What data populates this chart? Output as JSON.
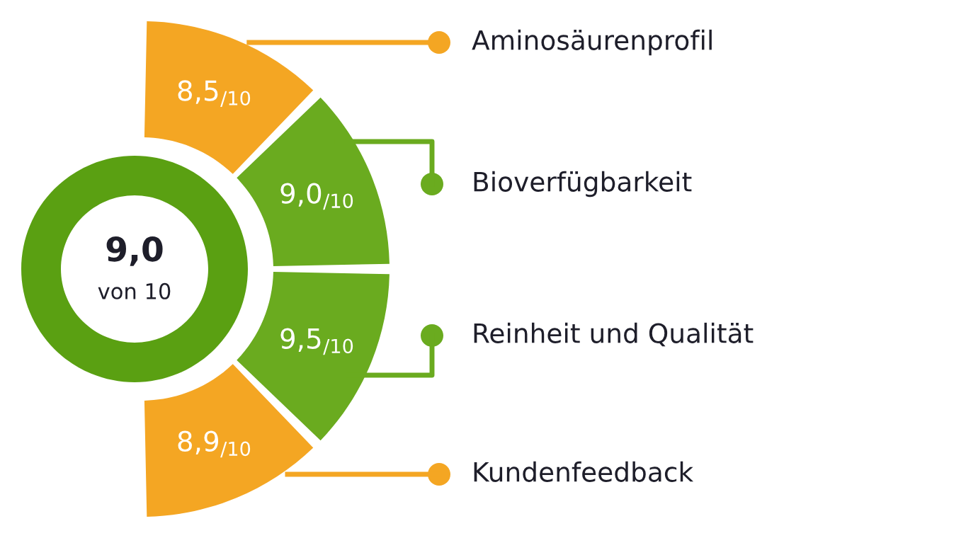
{
  "chart_data": {
    "type": "other",
    "categories": [
      "Aminosäurenprofil",
      "Bioverfügbarkeit",
      "Reinheit und Qualität",
      "Kundenfeedback"
    ],
    "values": [
      8.5,
      9.0,
      9.5,
      8.9
    ],
    "value_labels": [
      "8,5$_{/10}$",
      "9,0$_{/10}$",
      "9,5$_{/10}$",
      "8,9$_{/10}$"
    ],
    "colors": [
      "#f4a623",
      "#6aab1f",
      "#6aab1f",
      "#f4a623"
    ],
    "annotations": [
      "9,0",
      "von 10"
    ],
    "color": "#5aa012"
  }
}
